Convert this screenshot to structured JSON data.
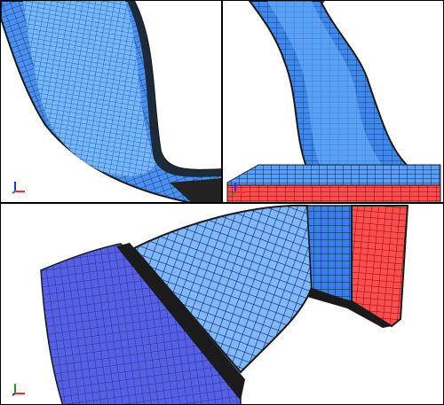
{
  "viewports": [
    {
      "name": "top-left",
      "view": "side"
    },
    {
      "name": "top-right",
      "view": "side"
    },
    {
      "name": "bottom",
      "view": "oblique"
    }
  ],
  "colors": {
    "mesh_blue": "#3a7ee6",
    "mesh_light": "#6fb6ff",
    "mesh_dark": "#1b3f7a",
    "mesh_indigo": "#4a55e0",
    "mesh_red": "#ff4d4d",
    "edge": "#1a1a1a",
    "background": "#ffffff",
    "border": "#000000",
    "axis_x": "#ff2a2a",
    "axis_y": "#1ea01e",
    "axis_z": "#2a2aff"
  },
  "icons": {
    "axis_triad": "xyz-axis-triad-icon"
  }
}
